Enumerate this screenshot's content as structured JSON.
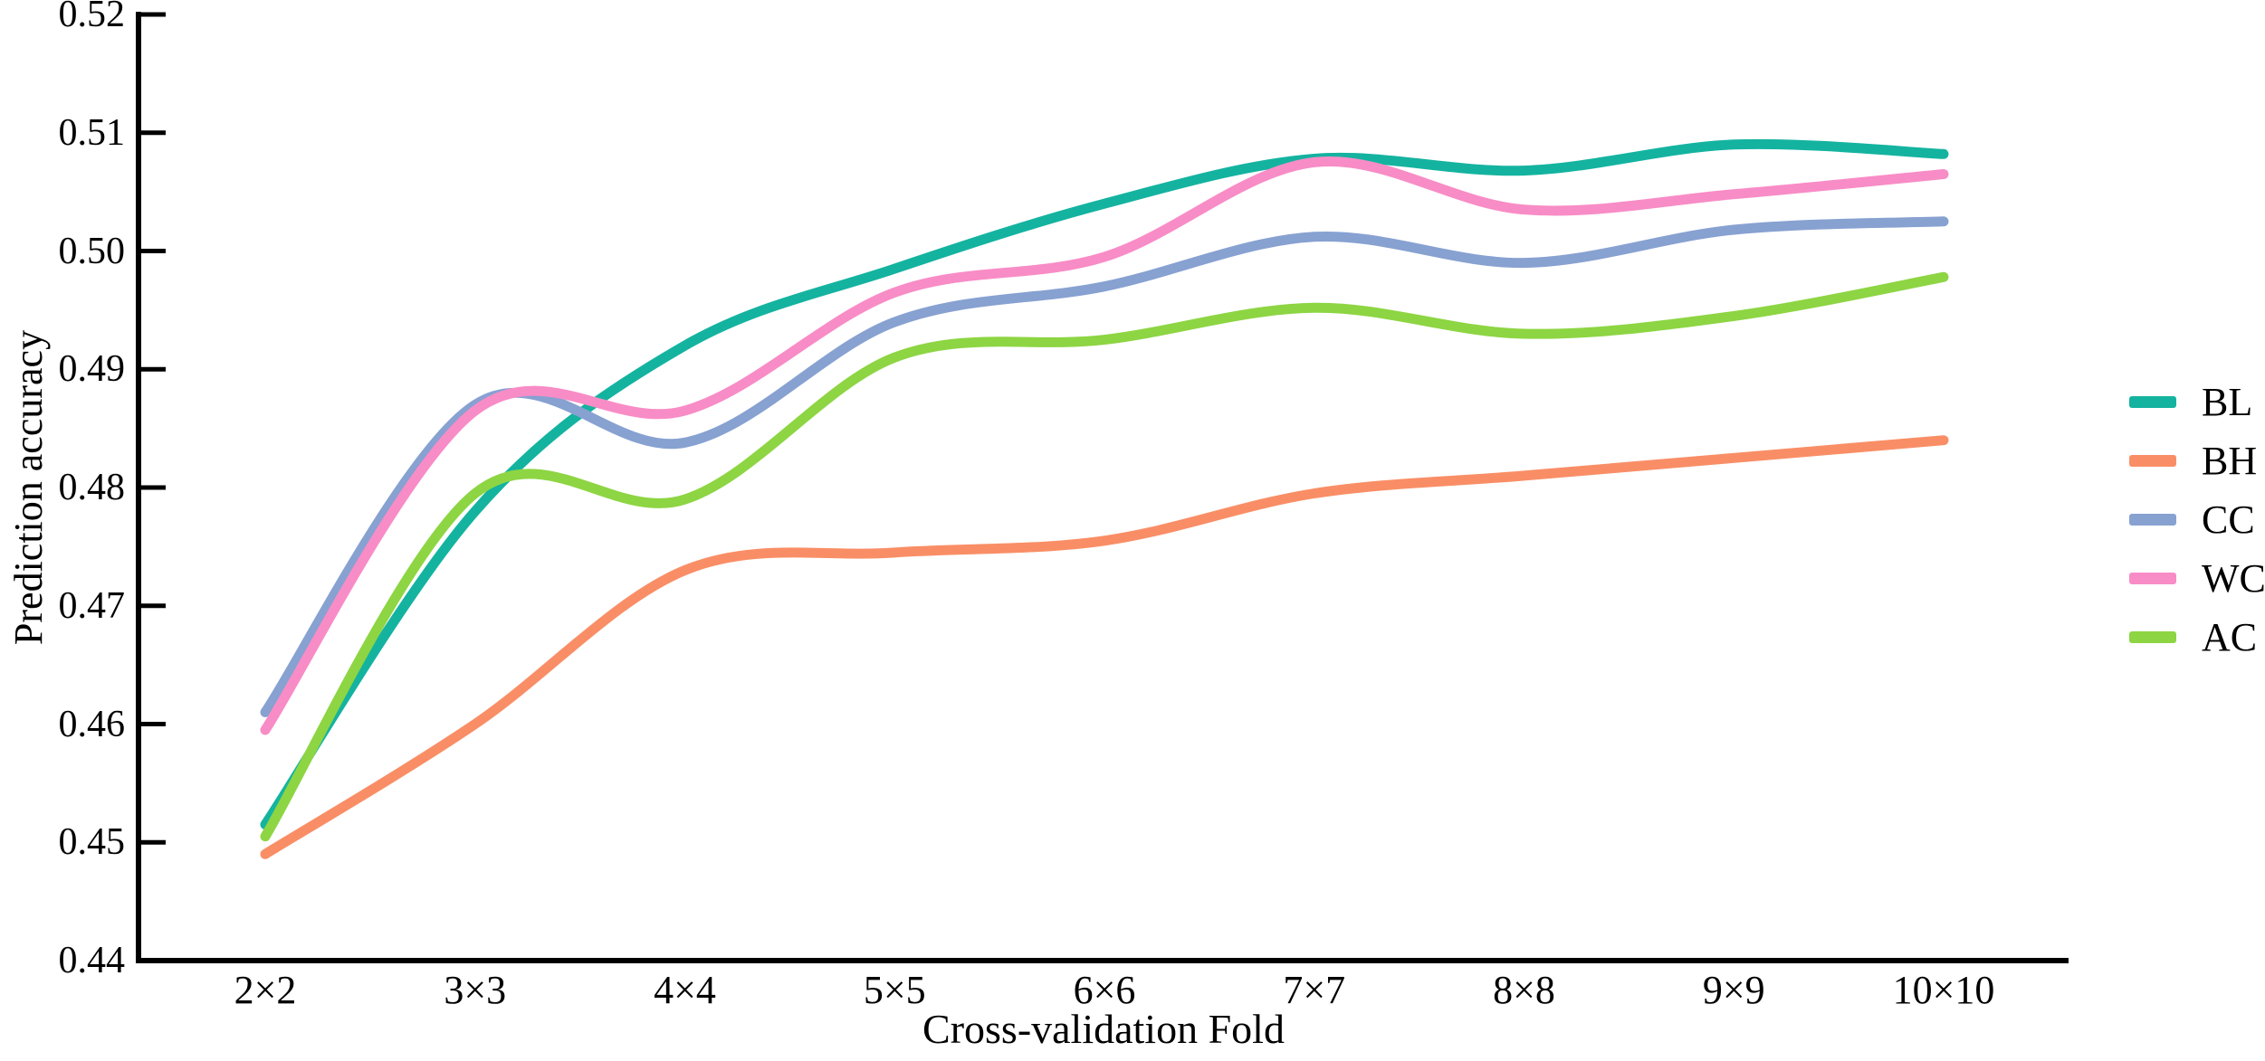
{
  "chart_data": {
    "type": "line",
    "title": "",
    "xlabel": "Cross-validation Fold",
    "ylabel": "Prediction accuracy",
    "categories": [
      "2×2",
      "3×3",
      "4×4",
      "5×5",
      "6×6",
      "7×7",
      "8×8",
      "9×9",
      "10×10"
    ],
    "ylim": [
      0.44,
      0.52
    ],
    "ytick_step": 0.01,
    "ytick_labels": [
      "0.44",
      "0.45",
      "0.46",
      "0.47",
      "0.48",
      "0.49",
      "0.50",
      "0.51",
      "0.52"
    ],
    "grid": false,
    "legend_position": "right-outside",
    "axis_color": "#000000",
    "series": [
      {
        "name": "BL",
        "color": "#14b3a0",
        "values": [
          0.4515,
          0.478,
          0.492,
          0.4985,
          0.504,
          0.5078,
          0.5068,
          0.509,
          0.5082
        ]
      },
      {
        "name": "BH",
        "color": "#f98e66",
        "values": [
          0.449,
          0.46,
          0.473,
          0.4745,
          0.4755,
          0.4795,
          0.481,
          0.4825,
          0.484
        ]
      },
      {
        "name": "CC",
        "color": "#87a1d1",
        "values": [
          0.461,
          0.487,
          0.4838,
          0.494,
          0.497,
          0.5012,
          0.499,
          0.5018,
          0.5025
        ]
      },
      {
        "name": "WC",
        "color": "#f88cc6",
        "values": [
          0.4595,
          0.4865,
          0.4865,
          0.4965,
          0.4995,
          0.5075,
          0.5035,
          0.5048,
          0.5065
        ]
      },
      {
        "name": "AC",
        "color": "#8dd543",
        "values": [
          0.4505,
          0.4795,
          0.479,
          0.491,
          0.4925,
          0.4952,
          0.493,
          0.4945,
          0.4978
        ]
      }
    ]
  }
}
